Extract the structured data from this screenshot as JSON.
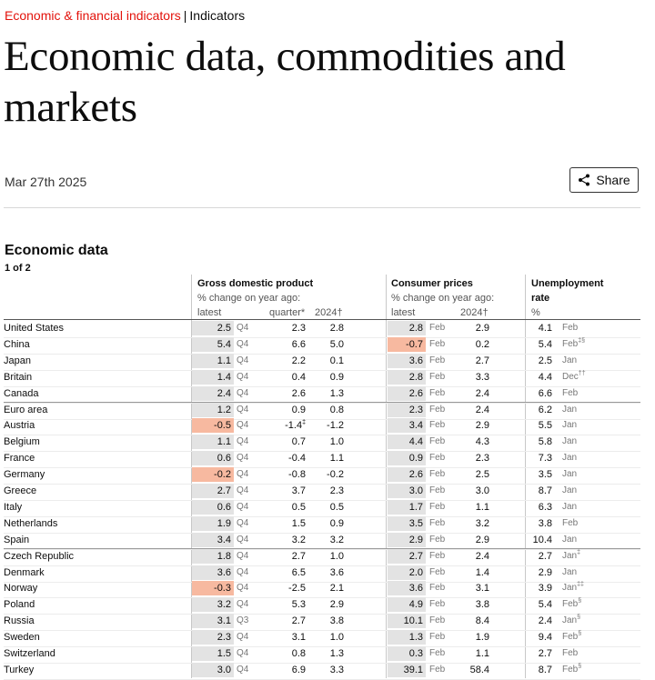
{
  "breadcrumb": {
    "section": "Economic & financial indicators",
    "separator": "|",
    "page": "Indicators"
  },
  "title": "Economic data, commodities and markets",
  "date": "Mar 27th 2025",
  "share_label": "Share",
  "table": {
    "title": "Economic data",
    "page_indicator": "1 of 2",
    "groups": {
      "gdp": {
        "title": "Gross domestic product",
        "sub": "% change on year ago:",
        "cols": [
          "latest",
          "quarter*",
          "2024†"
        ]
      },
      "cpi": {
        "title": "Consumer prices",
        "sub": "% change on year ago:",
        "cols": [
          "latest",
          "2024†"
        ]
      },
      "unemp": {
        "title": "Unemployment",
        "title2": "rate",
        "sub": "%"
      }
    },
    "rows": [
      {
        "c": "United States",
        "g": "2.5",
        "gp": "Q4",
        "q": "2.3",
        "y": "2.8",
        "cp": "2.8",
        "cpp": "Feb",
        "cy": "2.9",
        "u": "4.1",
        "up": "Feb"
      },
      {
        "c": "China",
        "g": "5.4",
        "gp": "Q4",
        "q": "6.6",
        "y": "5.0",
        "cp": "-0.7",
        "cpp": "Feb",
        "cy": "0.2",
        "u": "5.4",
        "up": "Feb",
        "ups": "‡§"
      },
      {
        "c": "Japan",
        "g": "1.1",
        "gp": "Q4",
        "q": "2.2",
        "y": "0.1",
        "cp": "3.6",
        "cpp": "Feb",
        "cy": "2.7",
        "u": "2.5",
        "up": "Jan"
      },
      {
        "c": "Britain",
        "g": "1.4",
        "gp": "Q4",
        "q": "0.4",
        "y": "0.9",
        "cp": "2.8",
        "cpp": "Feb",
        "cy": "3.3",
        "u": "4.4",
        "up": "Dec",
        "ups": "††"
      },
      {
        "c": "Canada",
        "g": "2.4",
        "gp": "Q4",
        "q": "2.6",
        "y": "1.3",
        "cp": "2.6",
        "cpp": "Feb",
        "cy": "2.4",
        "u": "6.6",
        "up": "Feb"
      },
      {
        "c": "Euro area",
        "g": "1.2",
        "gp": "Q4",
        "q": "0.9",
        "y": "0.8",
        "cp": "2.3",
        "cpp": "Feb",
        "cy": "2.4",
        "u": "6.2",
        "up": "Jan"
      },
      {
        "c": "Austria",
        "g": "-0.5",
        "gp": "Q4",
        "q": "-1.4",
        "qs": "‡",
        "y": "-1.2",
        "cp": "3.4",
        "cpp": "Feb",
        "cy": "2.9",
        "u": "5.5",
        "up": "Jan"
      },
      {
        "c": "Belgium",
        "g": "1.1",
        "gp": "Q4",
        "q": "0.7",
        "y": "1.0",
        "cp": "4.4",
        "cpp": "Feb",
        "cy": "4.3",
        "u": "5.8",
        "up": "Jan"
      },
      {
        "c": "France",
        "g": "0.6",
        "gp": "Q4",
        "q": "-0.4",
        "y": "1.1",
        "cp": "0.9",
        "cpp": "Feb",
        "cy": "2.3",
        "u": "7.3",
        "up": "Jan"
      },
      {
        "c": "Germany",
        "g": "-0.2",
        "gp": "Q4",
        "q": "-0.8",
        "y": "-0.2",
        "cp": "2.6",
        "cpp": "Feb",
        "cy": "2.5",
        "u": "3.5",
        "up": "Jan"
      },
      {
        "c": "Greece",
        "g": "2.7",
        "gp": "Q4",
        "q": "3.7",
        "y": "2.3",
        "cp": "3.0",
        "cpp": "Feb",
        "cy": "3.0",
        "u": "8.7",
        "up": "Jan"
      },
      {
        "c": "Italy",
        "g": "0.6",
        "gp": "Q4",
        "q": "0.5",
        "y": "0.5",
        "cp": "1.7",
        "cpp": "Feb",
        "cy": "1.1",
        "u": "6.3",
        "up": "Jan"
      },
      {
        "c": "Netherlands",
        "g": "1.9",
        "gp": "Q4",
        "q": "1.5",
        "y": "0.9",
        "cp": "3.5",
        "cpp": "Feb",
        "cy": "3.2",
        "u": "3.8",
        "up": "Feb"
      },
      {
        "c": "Spain",
        "g": "3.4",
        "gp": "Q4",
        "q": "3.2",
        "y": "3.2",
        "cp": "2.9",
        "cpp": "Feb",
        "cy": "2.9",
        "u": "10.4",
        "up": "Jan"
      },
      {
        "c": "Czech Republic",
        "g": "1.8",
        "gp": "Q4",
        "q": "2.7",
        "y": "1.0",
        "cp": "2.7",
        "cpp": "Feb",
        "cy": "2.4",
        "u": "2.7",
        "up": "Jan",
        "ups": "‡"
      },
      {
        "c": "Denmark",
        "g": "3.6",
        "gp": "Q4",
        "q": "6.5",
        "y": "3.6",
        "cp": "2.0",
        "cpp": "Feb",
        "cy": "1.4",
        "u": "2.9",
        "up": "Jan"
      },
      {
        "c": "Norway",
        "g": "-0.3",
        "gp": "Q4",
        "q": "-2.5",
        "y": "2.1",
        "cp": "3.6",
        "cpp": "Feb",
        "cy": "3.1",
        "u": "3.9",
        "up": "Jan",
        "ups": "‡‡"
      },
      {
        "c": "Poland",
        "g": "3.2",
        "gp": "Q4",
        "q": "5.3",
        "y": "2.9",
        "cp": "4.9",
        "cpp": "Feb",
        "cy": "3.8",
        "u": "5.4",
        "up": "Feb",
        "ups": "§"
      },
      {
        "c": "Russia",
        "g": "3.1",
        "gp": "Q3",
        "q": "2.7",
        "y": "3.8",
        "cp": "10.1",
        "cpp": "Feb",
        "cy": "8.4",
        "u": "2.4",
        "up": "Jan",
        "ups": "§"
      },
      {
        "c": "Sweden",
        "g": "2.3",
        "gp": "Q4",
        "q": "3.1",
        "y": "1.0",
        "cp": "1.3",
        "cpp": "Feb",
        "cy": "1.9",
        "u": "9.4",
        "up": "Feb",
        "ups": "§"
      },
      {
        "c": "Switzerland",
        "g": "1.5",
        "gp": "Q4",
        "q": "0.8",
        "y": "1.3",
        "cp": "0.3",
        "cpp": "Feb",
        "cy": "1.1",
        "u": "2.7",
        "up": "Feb"
      },
      {
        "c": "Turkey",
        "g": "3.0",
        "gp": "Q4",
        "q": "6.9",
        "y": "3.3",
        "cp": "39.1",
        "cpp": "Feb",
        "cy": "58.4",
        "u": "8.7",
        "up": "Feb",
        "ups": "§"
      }
    ]
  }
}
